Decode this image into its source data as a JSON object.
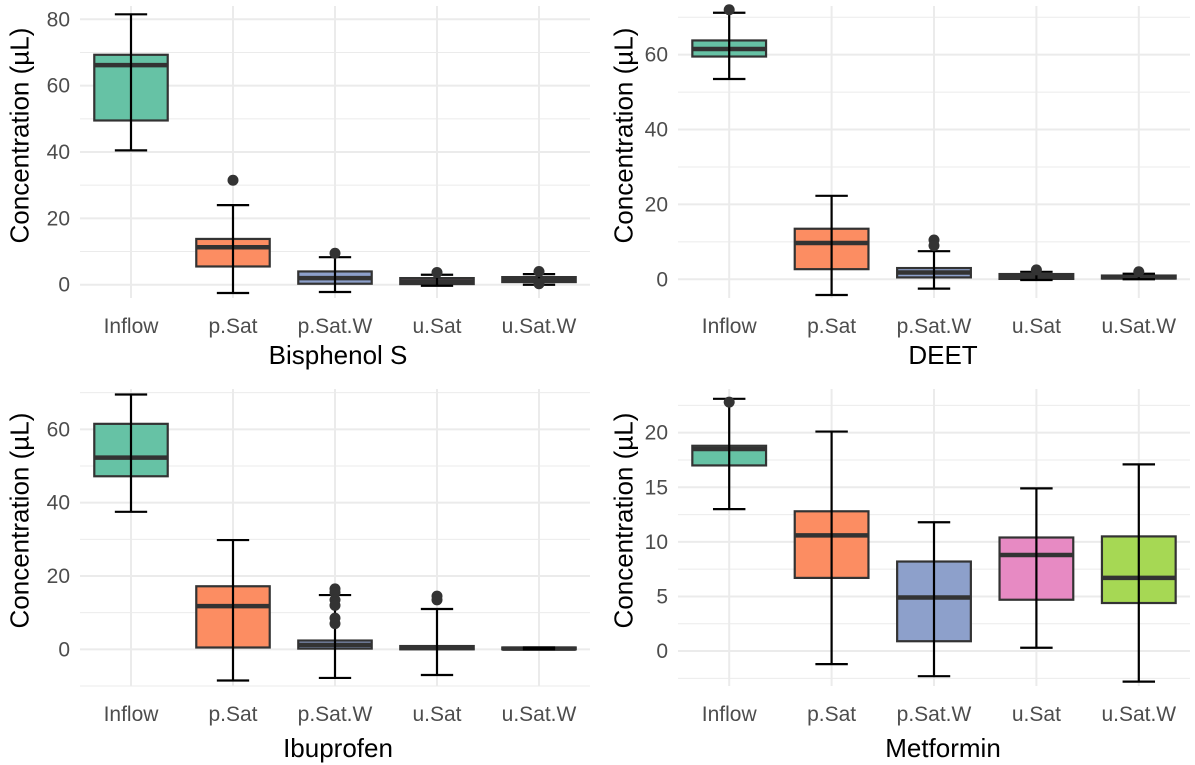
{
  "chart_data": [
    {
      "type": "boxplot",
      "title": "",
      "xlabel": "Bisphenol S",
      "ylabel": "Concentration (µL)",
      "categories": [
        "Inflow",
        "p.Sat",
        "p.Sat.W",
        "u.Sat",
        "u.Sat.W"
      ],
      "ylim": [
        -4,
        84
      ],
      "yticks": [
        0,
        20,
        40,
        60,
        80
      ],
      "grid": true,
      "boxes": [
        {
          "category": "Inflow",
          "whisker_low": 40.5,
          "q1": 49.5,
          "median": 66.2,
          "q3": 69.3,
          "whisker_high": 81.5,
          "outliers": []
        },
        {
          "category": "p.Sat",
          "whisker_low": -2.5,
          "q1": 5.5,
          "median": 11.3,
          "q3": 13.8,
          "whisker_high": 24,
          "outliers": [
            31.5
          ]
        },
        {
          "category": "p.Sat.W",
          "whisker_low": -2.2,
          "q1": 0.3,
          "median": 2,
          "q3": 4,
          "whisker_high": 8.3,
          "outliers": [
            9.5
          ]
        },
        {
          "category": "u.Sat",
          "whisker_low": -0.3,
          "q1": 0.2,
          "median": 1.0,
          "q3": 2.0,
          "whisker_high": 3.0,
          "outliers": [
            3.7
          ]
        },
        {
          "category": "u.Sat.W",
          "whisker_low": 0,
          "q1": 0.8,
          "median": 1.5,
          "q3": 2.3,
          "whisker_high": 3.2,
          "outliers": [
            4.0,
            0.3
          ]
        }
      ]
    },
    {
      "type": "boxplot",
      "title": "",
      "xlabel": "DEET",
      "ylabel": "Concentration (µL)",
      "categories": [
        "Inflow",
        "p.Sat",
        "p.Sat.W",
        "u.Sat",
        "u.Sat.W"
      ],
      "ylim": [
        -5,
        73
      ],
      "yticks": [
        0,
        20,
        40,
        60
      ],
      "grid": true,
      "boxes": [
        {
          "category": "Inflow",
          "whisker_low": 53.5,
          "q1": 59.5,
          "median": 61.5,
          "q3": 63.8,
          "whisker_high": 71.2,
          "outliers": [
            72
          ]
        },
        {
          "category": "p.Sat",
          "whisker_low": -4.2,
          "q1": 2.7,
          "median": 9.7,
          "q3": 13.5,
          "whisker_high": 22.3,
          "outliers": []
        },
        {
          "category": "p.Sat.W",
          "whisker_low": -2.5,
          "q1": 0.5,
          "median": 1.8,
          "q3": 3.0,
          "whisker_high": 7.5,
          "outliers": [
            10.5,
            9.0
          ]
        },
        {
          "category": "u.Sat",
          "whisker_low": -0.2,
          "q1": 0.1,
          "median": 0.6,
          "q3": 1.4,
          "whisker_high": 2.0,
          "outliers": [
            2.5
          ]
        },
        {
          "category": "u.Sat.W",
          "whisker_low": 0,
          "q1": 0.2,
          "median": 0.5,
          "q3": 1.0,
          "whisker_high": 1.5,
          "outliers": [
            2.0
          ]
        }
      ]
    },
    {
      "type": "boxplot",
      "title": "",
      "xlabel": "Ibuprofen",
      "ylabel": "Concentration (µL)",
      "categories": [
        "Inflow",
        "p.Sat",
        "p.Sat.W",
        "u.Sat",
        "u.Sat.W"
      ],
      "ylim": [
        -10,
        71
      ],
      "yticks": [
        0,
        20,
        40,
        60
      ],
      "grid": true,
      "boxes": [
        {
          "category": "Inflow",
          "whisker_low": 37.5,
          "q1": 47.2,
          "median": 52.3,
          "q3": 61.5,
          "whisker_high": 69.5,
          "outliers": []
        },
        {
          "category": "p.Sat",
          "whisker_low": -8.5,
          "q1": 0.5,
          "median": 11.8,
          "q3": 17.2,
          "whisker_high": 29.8,
          "outliers": []
        },
        {
          "category": "p.Sat.W",
          "whisker_low": -7.8,
          "q1": 0.2,
          "median": 1.2,
          "q3": 2.4,
          "whisker_high": 14.8,
          "outliers": [
            16.5,
            15.5,
            13.5,
            12.0,
            8.5,
            7.0
          ]
        },
        {
          "category": "u.Sat",
          "whisker_low": -7.0,
          "q1": 0,
          "median": 0.4,
          "q3": 0.9,
          "whisker_high": 11.0,
          "outliers": [
            14.5,
            13.5
          ]
        },
        {
          "category": "u.Sat.W",
          "whisker_low": 0,
          "q1": 0,
          "median": 0.2,
          "q3": 0.5,
          "whisker_high": 0.5,
          "outliers": []
        }
      ]
    },
    {
      "type": "boxplot",
      "title": "",
      "xlabel": "Metformin",
      "ylabel": "Concentration (µL)",
      "categories": [
        "Inflow",
        "p.Sat",
        "p.Sat.W",
        "u.Sat",
        "u.Sat.W"
      ],
      "ylim": [
        -3.2,
        24.0
      ],
      "yticks": [
        0,
        5,
        10,
        15,
        20
      ],
      "grid": true,
      "boxes": [
        {
          "category": "Inflow",
          "whisker_low": 13.0,
          "q1": 17.0,
          "median": 18.5,
          "q3": 18.8,
          "whisker_high": 23.1,
          "outliers": [
            22.8
          ]
        },
        {
          "category": "p.Sat",
          "whisker_low": -1.2,
          "q1": 6.7,
          "median": 10.6,
          "q3": 12.8,
          "whisker_high": 20.1,
          "outliers": []
        },
        {
          "category": "p.Sat.W",
          "whisker_low": -2.3,
          "q1": 0.9,
          "median": 4.9,
          "q3": 8.2,
          "whisker_high": 11.8,
          "outliers": []
        },
        {
          "category": "u.Sat",
          "whisker_low": 0.3,
          "q1": 4.7,
          "median": 8.8,
          "q3": 10.4,
          "whisker_high": 14.9,
          "outliers": []
        },
        {
          "category": "u.Sat.W",
          "whisker_low": -2.8,
          "q1": 4.4,
          "median": 6.7,
          "q3": 10.5,
          "whisker_high": 17.1,
          "outliers": []
        }
      ]
    }
  ],
  "colors": {
    "Inflow": "#66c2a5",
    "p.Sat": "#fc8d62",
    "p.Sat.W": "#8da0cb",
    "u.Sat": "#e78ac3",
    "u.Sat.W": "#a6d854",
    "grid": "#ebebeb",
    "box_outline": "#333333",
    "tick_text": "#4d4d4d"
  }
}
